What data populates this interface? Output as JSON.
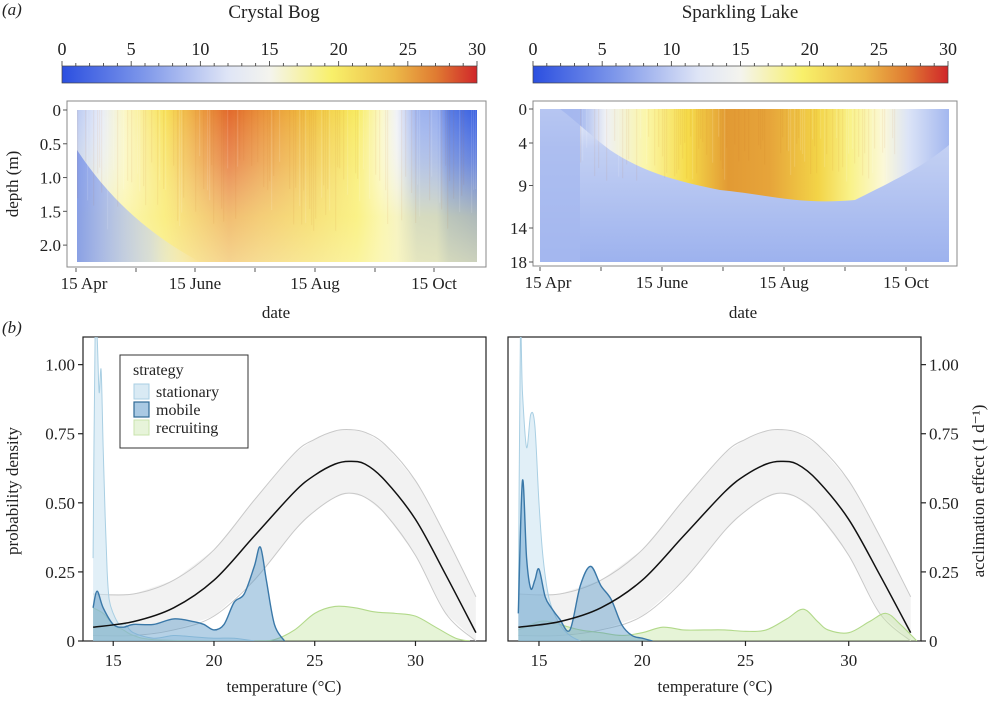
{
  "panel_labels": {
    "a": "(a)",
    "b": "(b)"
  },
  "chart_data": [
    {
      "type": "heatmap",
      "panel": "a",
      "title": "Crystal Bog",
      "colorbar": {
        "ticks": [
          "0",
          "5",
          "10",
          "15",
          "20",
          "25",
          "30"
        ],
        "range": [
          0,
          30
        ],
        "colors": [
          "#2b4fe0",
          "#9cb2ee",
          "#f4f5f7",
          "#f8f06a",
          "#e39a35",
          "#d0262a"
        ]
      },
      "xlabel": "date",
      "ylabel": "depth (m)",
      "xticks": [
        "15 Apr",
        "15 June",
        "15 Aug",
        "15 Oct"
      ],
      "yticks": [
        "0",
        "0.5",
        "1.0",
        "1.5",
        "2.0"
      ],
      "ylim": [
        0,
        2.25
      ],
      "description": "Warm (yellow-red) surface layer from mid-May to mid-September, peaking ~27 °C in early July near surface; cool blue in April at depth and from late September onward."
    },
    {
      "type": "heatmap",
      "panel": "a",
      "title": "Sparkling Lake",
      "colorbar": {
        "ticks": [
          "0",
          "5",
          "10",
          "15",
          "20",
          "25",
          "30"
        ],
        "range": [
          0,
          30
        ],
        "colors": [
          "#2b4fe0",
          "#9cb2ee",
          "#f4f5f7",
          "#f8f06a",
          "#e39a35",
          "#d0262a"
        ]
      },
      "xlabel": "date",
      "ylabel": "",
      "xticks": [
        "15 Apr",
        "15 June",
        "15 Aug",
        "15 Oct"
      ],
      "yticks": [
        "0",
        "4",
        "9",
        "14",
        "18"
      ],
      "ylim": [
        0,
        18
      ],
      "description": "Epilimnion warms to ~24 °C from July–August down to ~9–11 m; hypolimnion stays ~7–9 °C; overturn in late September."
    },
    {
      "type": "area",
      "panel": "b",
      "lake": "Crystal Bog",
      "xlabel": "temperature (°C)",
      "ylabel": "probability density",
      "xticks": [
        "15",
        "20",
        "25",
        "30"
      ],
      "yticks": [
        "0",
        "0.25",
        "0.50",
        "0.75",
        "1.00"
      ],
      "xlim": [
        13.5,
        33.5
      ],
      "ylim": [
        0,
        1.1
      ],
      "legend": {
        "title": "strategy",
        "entries": [
          "stationary",
          "mobile",
          "recruiting"
        ],
        "position": "top-left"
      },
      "series": [
        {
          "name": "stationary",
          "color": "#a9cfe3",
          "x": [
            14.0,
            14.1,
            14.2,
            14.3,
            14.4,
            14.5,
            14.6,
            14.7,
            14.8,
            15.0,
            15.3,
            15.6,
            16.0,
            17.0,
            18.0,
            19.0,
            20.0,
            21.0,
            22.0
          ],
          "y": [
            0.3,
            1.1,
            1.1,
            0.9,
            0.98,
            0.7,
            0.45,
            0.25,
            0.15,
            0.1,
            0.06,
            0.06,
            0.03,
            0.01,
            0.02,
            0.015,
            0.01,
            0.01,
            0
          ]
        },
        {
          "name": "mobile",
          "color": "#4a8ab8",
          "x": [
            14.0,
            14.2,
            14.5,
            15.0,
            15.5,
            16.0,
            17.0,
            18.0,
            19.0,
            19.5,
            20.0,
            20.5,
            21.0,
            21.5,
            22.0,
            22.3,
            22.6,
            23.0,
            23.5
          ],
          "y": [
            0.12,
            0.18,
            0.12,
            0.06,
            0.05,
            0.06,
            0.06,
            0.08,
            0.07,
            0.06,
            0.04,
            0.06,
            0.14,
            0.17,
            0.27,
            0.34,
            0.22,
            0.06,
            0
          ]
        },
        {
          "name": "recruiting",
          "color": "#b7dc8f",
          "x": [
            14.0,
            14.5,
            15.0,
            15.5,
            16.0,
            17.0,
            20.0,
            22.0,
            23.0,
            24.0,
            25.0,
            26.0,
            27.0,
            28.0,
            29.0,
            30.0,
            31.0,
            32.0,
            32.7
          ],
          "y": [
            0.12,
            0.1,
            0.06,
            0.04,
            0.02,
            0.005,
            0,
            0,
            0.005,
            0.04,
            0.1,
            0.125,
            0.12,
            0.105,
            0.1,
            0.09,
            0.05,
            0.01,
            0
          ]
        },
        {
          "name": "acclimation effect",
          "axis": "right",
          "color": "#000000",
          "x": [
            14.0,
            16.0,
            18.0,
            20.0,
            22.0,
            24.0,
            25.0,
            26.0,
            26.7,
            27.5,
            28.5,
            30.0,
            31.5,
            33.0
          ],
          "y": [
            0.05,
            0.07,
            0.12,
            0.22,
            0.38,
            0.54,
            0.6,
            0.64,
            0.65,
            0.64,
            0.58,
            0.44,
            0.24,
            0.03
          ],
          "ci_lower": [
            0.02,
            0.02,
            0.04,
            0.09,
            0.22,
            0.4,
            0.47,
            0.52,
            0.535,
            0.52,
            0.46,
            0.31,
            0.1,
            0
          ],
          "ci_upper": [
            0.17,
            0.17,
            0.22,
            0.33,
            0.51,
            0.68,
            0.73,
            0.76,
            0.765,
            0.755,
            0.71,
            0.58,
            0.38,
            0.16
          ]
        }
      ]
    },
    {
      "type": "area",
      "panel": "b",
      "lake": "Sparkling Lake",
      "xlabel": "temperature (°C)",
      "ylabel": "acclimation effect (1 d⁻¹)",
      "xticks": [
        "15",
        "20",
        "25",
        "30"
      ],
      "yticks": [
        "0",
        "0.25",
        "0.50",
        "0.75",
        "1.00"
      ],
      "xlim": [
        13.5,
        33.5
      ],
      "ylim": [
        0,
        1.1
      ],
      "series": [
        {
          "name": "stationary",
          "color": "#a9cfe3",
          "x": [
            14.0,
            14.1,
            14.2,
            14.4,
            14.6,
            14.8,
            15.0,
            15.2,
            15.5,
            16.0,
            16.5,
            17.0
          ],
          "y": [
            0.1,
            1.1,
            0.9,
            0.7,
            0.82,
            0.78,
            0.5,
            0.3,
            0.15,
            0.06,
            0.02,
            0
          ]
        },
        {
          "name": "mobile",
          "color": "#4a8ab8",
          "x": [
            14.0,
            14.2,
            14.4,
            14.6,
            14.8,
            15.0,
            15.3,
            15.6,
            16.0,
            16.5,
            17.0,
            17.5,
            18.0,
            18.5,
            19.0,
            19.5,
            20.0,
            20.5
          ],
          "y": [
            0.1,
            0.58,
            0.3,
            0.19,
            0.22,
            0.26,
            0.16,
            0.12,
            0.08,
            0.04,
            0.2,
            0.27,
            0.2,
            0.15,
            0.06,
            0.02,
            0.01,
            0
          ]
        },
        {
          "name": "recruiting",
          "color": "#b7dc8f",
          "x": [
            14.0,
            15.0,
            15.5,
            16.0,
            17.0,
            18.0,
            19.0,
            20.0,
            21.0,
            22.0,
            23.0,
            24.0,
            25.0,
            26.0,
            27.0,
            27.8,
            28.5,
            29.0,
            30.0,
            31.0,
            31.8,
            32.5,
            33.3
          ],
          "y": [
            0.04,
            0.07,
            0.07,
            0.06,
            0.04,
            0.03,
            0.02,
            0.03,
            0.05,
            0.04,
            0.04,
            0.04,
            0.035,
            0.04,
            0.08,
            0.115,
            0.07,
            0.04,
            0.03,
            0.07,
            0.1,
            0.06,
            0
          ]
        },
        {
          "name": "acclimation effect",
          "axis": "right",
          "color": "#000000",
          "x": [
            14.0,
            16.0,
            18.0,
            20.0,
            22.0,
            24.0,
            25.0,
            26.0,
            26.7,
            27.5,
            28.5,
            30.0,
            31.5,
            33.0
          ],
          "y": [
            0.05,
            0.07,
            0.12,
            0.22,
            0.38,
            0.54,
            0.6,
            0.64,
            0.65,
            0.64,
            0.58,
            0.44,
            0.24,
            0.03
          ],
          "ci_lower": [
            0.02,
            0.02,
            0.04,
            0.09,
            0.22,
            0.4,
            0.47,
            0.52,
            0.535,
            0.52,
            0.46,
            0.31,
            0.1,
            0
          ],
          "ci_upper": [
            0.17,
            0.17,
            0.22,
            0.33,
            0.51,
            0.68,
            0.73,
            0.76,
            0.765,
            0.755,
            0.71,
            0.58,
            0.38,
            0.16
          ]
        }
      ]
    }
  ]
}
